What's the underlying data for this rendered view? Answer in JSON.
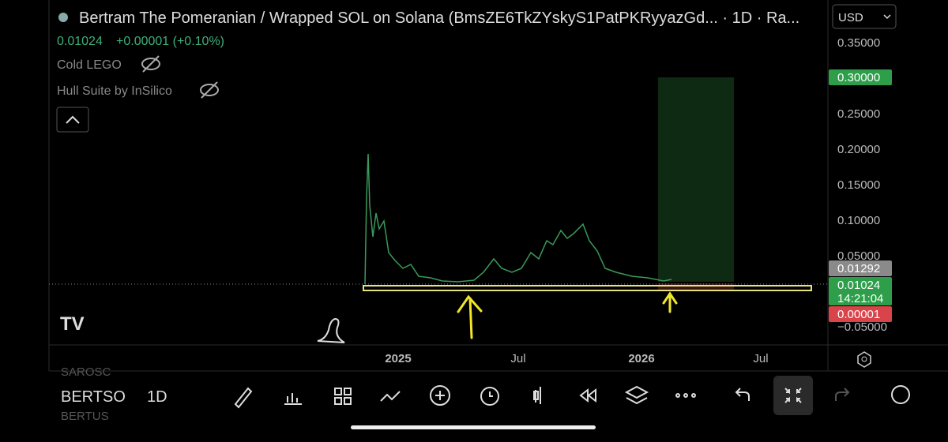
{
  "header": {
    "title": "Bertram The Pomeranian / Wrapped SOL on Solana (BmsZE6TkZYskyS1PatPKRyyazGd... · 1D · Ra...",
    "price": "0.01024",
    "change": "+0.00001 (+0.10%)"
  },
  "indicators": [
    "Cold LEGO",
    "Hull Suite by InSilico"
  ],
  "currency": "USD",
  "price_axis": [
    "0.35000",
    "0.30000",
    "0.25000",
    "0.20000",
    "0.15000",
    "0.10000",
    "0.05000",
    "−0.05000"
  ],
  "badges": {
    "target": "0.30000",
    "high": "0.01292",
    "last": "0.01024",
    "countdown": "14:21:04",
    "change": "0.00001"
  },
  "time_axis": [
    "2025",
    "Jul",
    "2026",
    "Jul"
  ],
  "toolbar": {
    "symbol": "BERTSO",
    "interval": "1D",
    "above": "SAROSC",
    "below": "BERTUS"
  }
}
